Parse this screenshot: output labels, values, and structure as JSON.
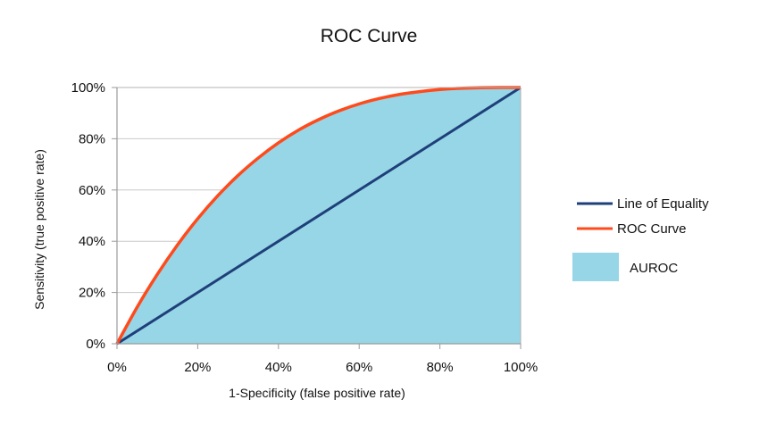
{
  "chart_data": {
    "type": "line",
    "title": "ROC Curve",
    "xlabel": "1-Specificity (false positive rate)",
    "ylabel": "Sensitivity (true positive rate)",
    "xlim": [
      0,
      100
    ],
    "ylim": [
      0,
      100
    ],
    "x_ticks": [
      "0%",
      "20%",
      "40%",
      "60%",
      "80%",
      "100%"
    ],
    "y_ticks": [
      "0%",
      "20%",
      "40%",
      "60%",
      "80%",
      "100%"
    ],
    "grid": true,
    "legend_position": "right",
    "series": [
      {
        "name": "Line of Equality",
        "color": "#1f3f7a",
        "x": [
          0,
          100
        ],
        "y": [
          0,
          100
        ]
      },
      {
        "name": "ROC Curve",
        "color": "#ff4a1c",
        "x": [
          0,
          5,
          10,
          15,
          20,
          25,
          30,
          35,
          40,
          45,
          50,
          55,
          60,
          65,
          70,
          75,
          80,
          85,
          90,
          95,
          100
        ],
        "y": [
          0,
          14.3,
          27.1,
          38.6,
          48.8,
          57.8,
          65.7,
          72.5,
          78.4,
          83.4,
          87.5,
          90.9,
          93.6,
          95.7,
          97.3,
          98.4,
          99.2,
          99.7,
          99.9,
          100,
          100
        ]
      }
    ],
    "area": {
      "name": "AUROC",
      "color": "#96d6e6",
      "under_series": "ROC Curve"
    }
  }
}
